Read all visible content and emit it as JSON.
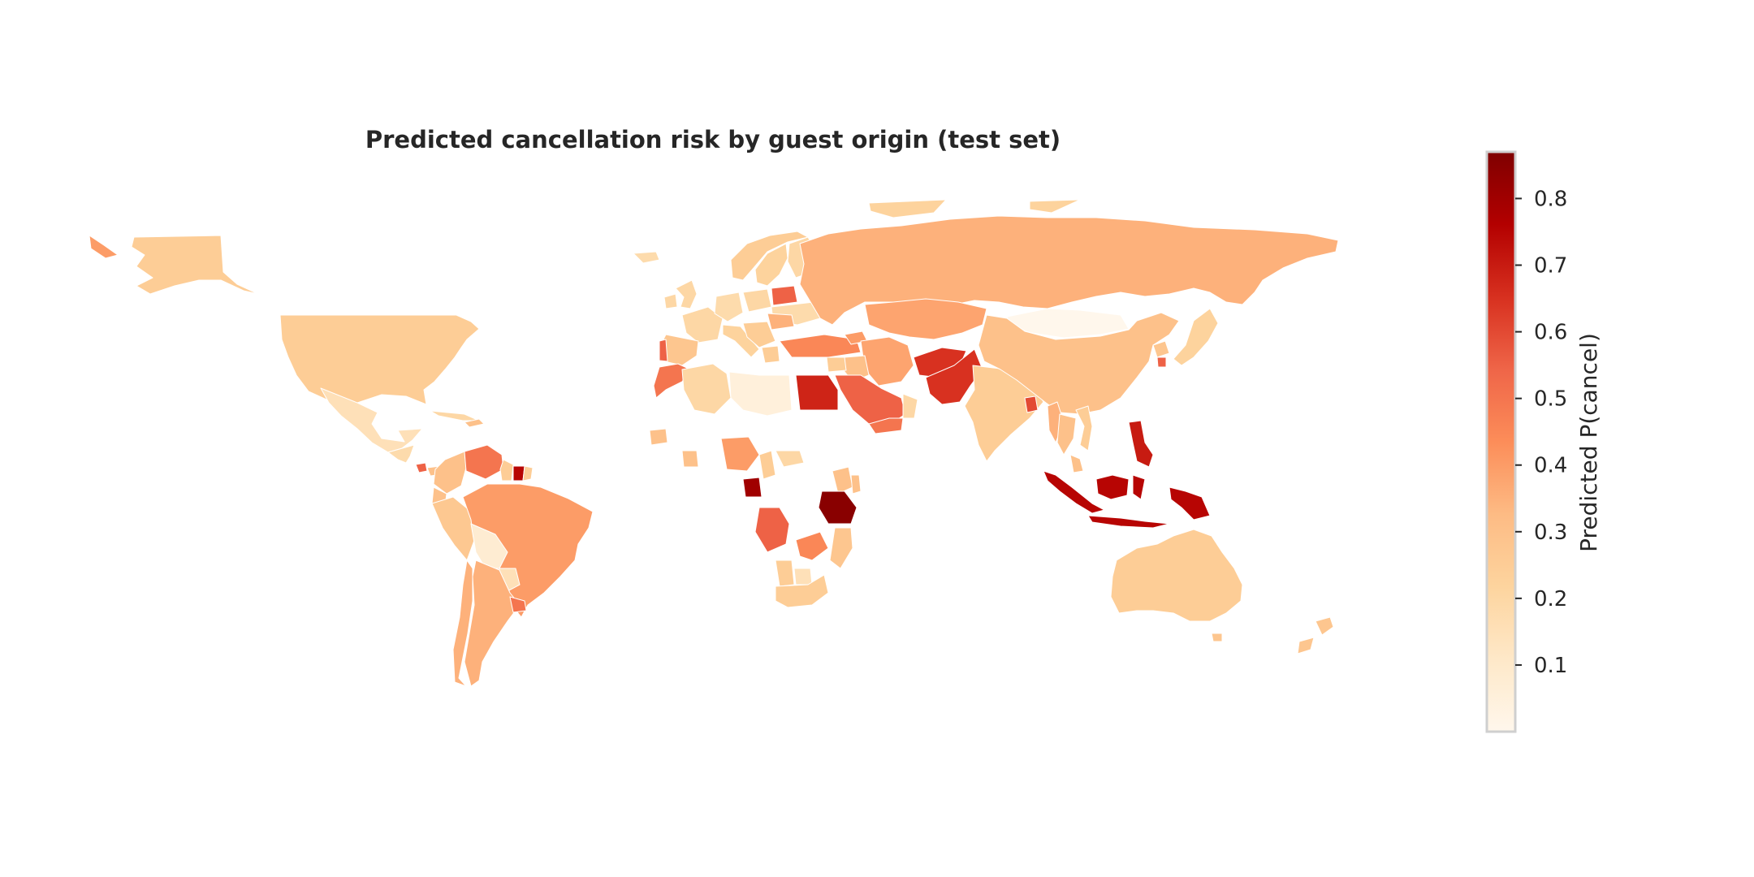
{
  "chart_data": {
    "type": "choropleth",
    "title": "Predicted cancellation risk by guest origin (test set)",
    "colorbar": {
      "label": "Predicted P(cancel)",
      "colormap": "OrRd",
      "range": [
        0.0,
        0.87
      ],
      "ticks": [
        0.1,
        0.2,
        0.3,
        0.4,
        0.5,
        0.6,
        0.7,
        0.8
      ],
      "tick_labels": [
        "0.1",
        "0.2",
        "0.3",
        "0.4",
        "0.5",
        "0.6",
        "0.7",
        "0.8"
      ],
      "stops": [
        "#fff7ec",
        "#fee8c8",
        "#fdd49e",
        "#fdbb84",
        "#fc8d59",
        "#ef6548",
        "#d7301f",
        "#b30000",
        "#7f0000"
      ]
    },
    "regions": [
      {
        "name": "Alaska",
        "value": 0.25
      },
      {
        "name": "Aleutians",
        "value": 0.4
      },
      {
        "name": "Canada Arctic Islands",
        "value": 0.22
      },
      {
        "name": "Greenland",
        "value": 0.22
      },
      {
        "name": "Iceland",
        "value": 0.18
      },
      {
        "name": "United States",
        "value": 0.25
      },
      {
        "name": "Mexico",
        "value": 0.15
      },
      {
        "name": "Central America",
        "value": 0.18
      },
      {
        "name": "Cuba",
        "value": 0.2
      },
      {
        "name": "Hispaniola",
        "value": 0.3
      },
      {
        "name": "Costa Rica",
        "value": 0.55
      },
      {
        "name": "Panama",
        "value": 0.3
      },
      {
        "name": "Colombia",
        "value": 0.3
      },
      {
        "name": "Venezuela",
        "value": 0.5
      },
      {
        "name": "Guyana",
        "value": 0.25
      },
      {
        "name": "Suriname",
        "value": 0.75
      },
      {
        "name": "French Guiana",
        "value": 0.25
      },
      {
        "name": "Ecuador",
        "value": 0.3
      },
      {
        "name": "Peru",
        "value": 0.27
      },
      {
        "name": "Brazil",
        "value": 0.4
      },
      {
        "name": "Bolivia",
        "value": 0.08
      },
      {
        "name": "Paraguay",
        "value": 0.15
      },
      {
        "name": "Chile",
        "value": 0.35
      },
      {
        "name": "Argentina",
        "value": 0.35
      },
      {
        "name": "Uruguay",
        "value": 0.5
      },
      {
        "name": "Norway",
        "value": 0.25
      },
      {
        "name": "Sweden",
        "value": 0.22
      },
      {
        "name": "Finland",
        "value": 0.2
      },
      {
        "name": "United Kingdom",
        "value": 0.2
      },
      {
        "name": "Ireland",
        "value": 0.2
      },
      {
        "name": "France",
        "value": 0.2
      },
      {
        "name": "Spain",
        "value": 0.28
      },
      {
        "name": "Portugal",
        "value": 0.55
      },
      {
        "name": "Germany",
        "value": 0.18
      },
      {
        "name": "Poland",
        "value": 0.2
      },
      {
        "name": "Belarus",
        "value": 0.55
      },
      {
        "name": "Ukraine",
        "value": 0.18
      },
      {
        "name": "Italy",
        "value": 0.22
      },
      {
        "name": "Balkans",
        "value": 0.25
      },
      {
        "name": "Romania",
        "value": 0.35
      },
      {
        "name": "Greece",
        "value": 0.25
      },
      {
        "name": "Turkey",
        "value": 0.45
      },
      {
        "name": "Russia",
        "value": 0.35
      },
      {
        "name": "Kazakhstan",
        "value": 0.38
      },
      {
        "name": "Caucasus",
        "value": 0.4
      },
      {
        "name": "Iran",
        "value": 0.38
      },
      {
        "name": "Iraq",
        "value": 0.3
      },
      {
        "name": "Syria",
        "value": 0.25
      },
      {
        "name": "Saudi Arabia",
        "value": 0.55
      },
      {
        "name": "Yemen",
        "value": 0.5
      },
      {
        "name": "Oman",
        "value": 0.2
      },
      {
        "name": "Afghanistan",
        "value": 0.65
      },
      {
        "name": "Pakistan",
        "value": 0.65
      },
      {
        "name": "India",
        "value": 0.25
      },
      {
        "name": "Bangladesh",
        "value": 0.6
      },
      {
        "name": "Mongolia",
        "value": 0.0
      },
      {
        "name": "China",
        "value": 0.3
      },
      {
        "name": "North Korea",
        "value": 0.28
      },
      {
        "name": "South Korea",
        "value": 0.55
      },
      {
        "name": "Japan",
        "value": 0.22
      },
      {
        "name": "Myanmar",
        "value": 0.35
      },
      {
        "name": "Thailand",
        "value": 0.3
      },
      {
        "name": "Vietnam",
        "value": 0.25
      },
      {
        "name": "Malaysia",
        "value": 0.3
      },
      {
        "name": "Philippines",
        "value": 0.7
      },
      {
        "name": "Indonesia",
        "value": 0.75
      },
      {
        "name": "Papua New Guinea",
        "value": 0.75
      },
      {
        "name": "Australia",
        "value": 0.25
      },
      {
        "name": "Tasmania",
        "value": 0.28
      },
      {
        "name": "New Zealand",
        "value": 0.28
      },
      {
        "name": "Morocco",
        "value": 0.5
      },
      {
        "name": "Algeria",
        "value": 0.2
      },
      {
        "name": "Libya",
        "value": 0.05
      },
      {
        "name": "Egypt",
        "value": 0.68
      },
      {
        "name": "Senegal",
        "value": 0.3
      },
      {
        "name": "Ghana",
        "value": 0.3
      },
      {
        "name": "Nigeria",
        "value": 0.4
      },
      {
        "name": "Cameroon",
        "value": 0.25
      },
      {
        "name": "Central African Republic",
        "value": 0.2
      },
      {
        "name": "Gabon",
        "value": 0.8
      },
      {
        "name": "Ethiopia",
        "value": 0.3
      },
      {
        "name": "Kenya",
        "value": 0.3
      },
      {
        "name": "Tanzania",
        "value": 0.85
      },
      {
        "name": "Angola",
        "value": 0.55
      },
      {
        "name": "Zambia",
        "value": 0.45
      },
      {
        "name": "Mozambique",
        "value": 0.28
      },
      {
        "name": "Namibia",
        "value": 0.25
      },
      {
        "name": "Botswana",
        "value": 0.15
      },
      {
        "name": "South Africa",
        "value": 0.25
      }
    ]
  }
}
